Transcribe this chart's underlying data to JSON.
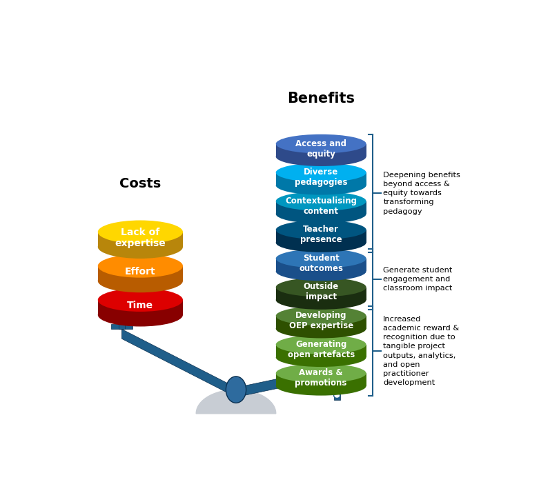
{
  "title": "Benefits",
  "costs_title": "Costs",
  "cost_items": [
    {
      "label": "Lack of\nexpertise",
      "color": "#FFD700",
      "edge_color": "#B8860B"
    },
    {
      "label": "Effort",
      "color": "#FF8C00",
      "edge_color": "#B85C00"
    },
    {
      "label": "Time",
      "color": "#DD0000",
      "edge_color": "#880000"
    }
  ],
  "benefit_items": [
    {
      "label": "Access and\nequity",
      "color": "#4472C4",
      "edge_color": "#2E4A8A"
    },
    {
      "label": "Diverse\npedagogies",
      "color": "#00B0F0",
      "edge_color": "#0078A8"
    },
    {
      "label": "Contextualising\ncontent",
      "color": "#0097C0",
      "edge_color": "#005580"
    },
    {
      "label": "Teacher\npresence",
      "color": "#005580",
      "edge_color": "#003050"
    },
    {
      "label": "Student\noutcomes",
      "color": "#2E75B6",
      "edge_color": "#1A4F8A"
    },
    {
      "label": "Outside\nimpact",
      "color": "#375623",
      "edge_color": "#1A2E10"
    },
    {
      "label": "Developing\nOEP expertise",
      "color": "#548235",
      "edge_color": "#2E5000"
    },
    {
      "label": "Generating\nopen artefacts",
      "color": "#70AD47",
      "edge_color": "#3A7000"
    },
    {
      "label": "Awards &\npromotions",
      "color": "#70AD47",
      "edge_color": "#3A7000"
    }
  ],
  "ann_groups": [
    [
      5,
      8,
      "Deepening benefits\nbeyond access &\nequity towards\ntransforming\npedagogy"
    ],
    [
      3,
      4,
      "Generate student\nengagement and\nclassroom impact"
    ],
    [
      0,
      2,
      "Increased\nacademic reward &\nrecognition due to\ntangible project\noutputs, analytics,\nand open\npractitioner\ndevelopment"
    ]
  ],
  "scale_color": "#1F5E8A",
  "fulcrum_color": "#C8CDD4",
  "background_color": "#FFFFFF",
  "pivot_color": "#2E6B9E"
}
